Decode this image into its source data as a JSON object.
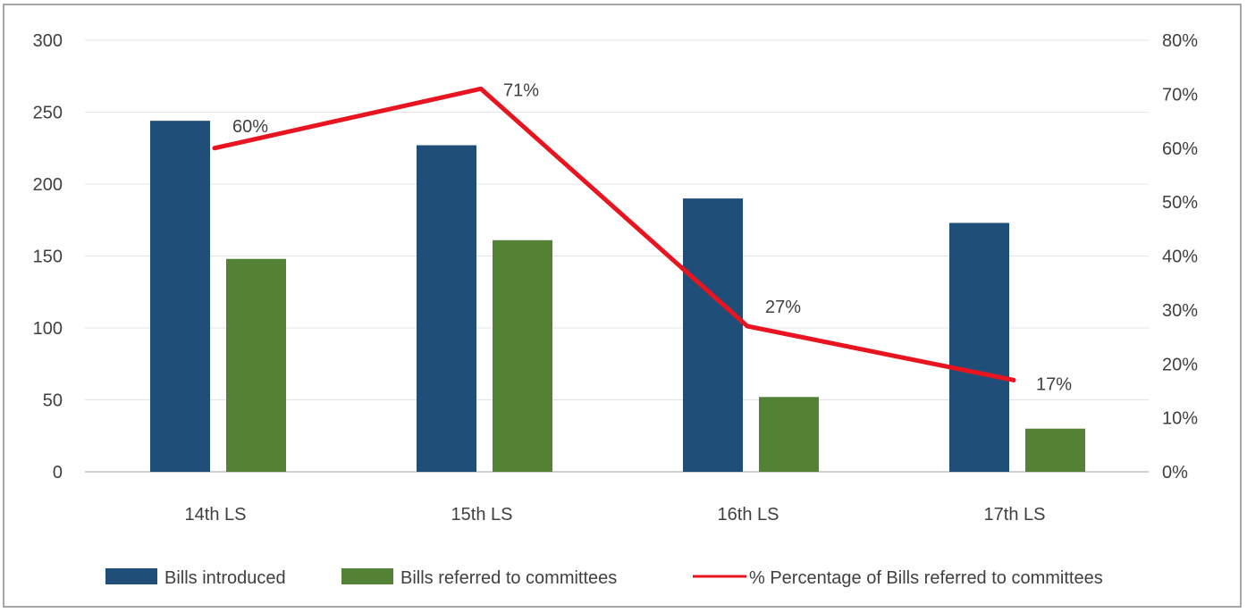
{
  "chart_data": {
    "type": "bar",
    "categories": [
      "14th LS",
      "15th LS",
      "16th LS",
      "17th LS"
    ],
    "series": [
      {
        "name": "Bills introduced",
        "type": "bar",
        "axis": "left",
        "color": "#1f4e79",
        "values": [
          244,
          227,
          190,
          173
        ]
      },
      {
        "name": "Bills referred to committees",
        "type": "bar",
        "axis": "left",
        "color": "#548235",
        "values": [
          148,
          161,
          52,
          30
        ]
      },
      {
        "name": "% Percentage of Bills  referred to committees",
        "type": "line",
        "axis": "right",
        "color": "#e8141f",
        "values": [
          60,
          71,
          27,
          17
        ],
        "labels": [
          "60%",
          "71%",
          "27%",
          "17%"
        ]
      }
    ],
    "y_left": {
      "min": 0,
      "max": 300,
      "ticks": [
        "0",
        "50",
        "100",
        "150",
        "200",
        "250",
        "300"
      ]
    },
    "y_right": {
      "min": 0,
      "max": 80,
      "ticks": [
        "0%",
        "10%",
        "20%",
        "30%",
        "40%",
        "50%",
        "60%",
        "70%",
        "80%"
      ]
    },
    "grid": true,
    "legend": "bottom"
  }
}
